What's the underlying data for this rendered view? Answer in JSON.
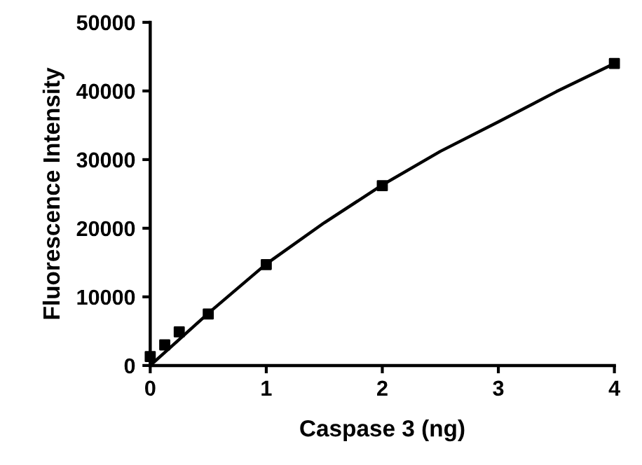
{
  "chart_data": {
    "type": "scatter",
    "xlabel": "Caspase 3 (ng)",
    "ylabel": "Fluorescence Intensity",
    "xlim": [
      0,
      4
    ],
    "xticks": [
      0,
      1,
      2,
      3,
      4
    ],
    "ylim": [
      0,
      50000
    ],
    "yticks": [
      0,
      10000,
      20000,
      30000,
      40000,
      50000
    ],
    "grid": false,
    "legend": false,
    "series": [
      {
        "color": "#000000",
        "marker": "square",
        "x": [
          0,
          0.125,
          0.25,
          0.5,
          1,
          2,
          4
        ],
        "values": [
          1300,
          3000,
          4900,
          7500,
          14700,
          26200,
          44000
        ]
      },
      {
        "type": "line",
        "color": "#000000",
        "marker": "none",
        "line_style": "solid",
        "x": [
          0,
          0.5,
          1,
          1.5,
          2,
          2.5,
          3,
          3.5,
          4
        ],
        "values": [
          0,
          7600,
          14800,
          20800,
          26300,
          31200,
          35500,
          39900,
          44000
        ]
      }
    ]
  }
}
